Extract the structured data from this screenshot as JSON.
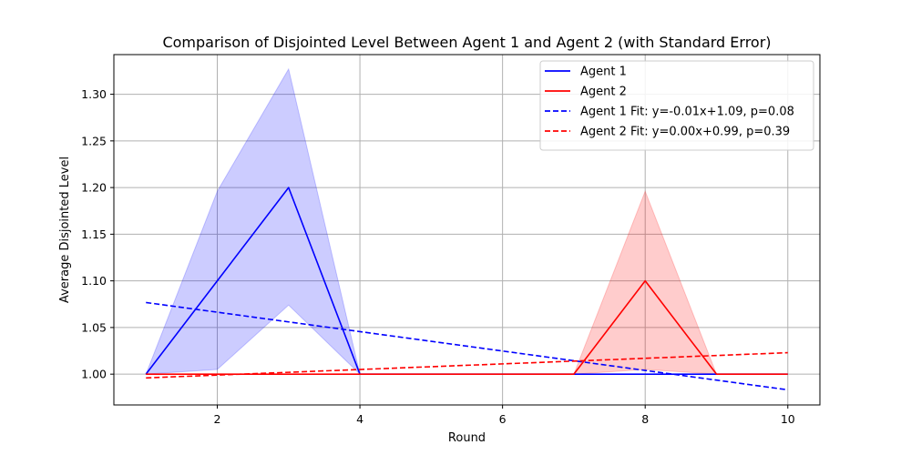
{
  "chart_data": {
    "type": "line",
    "title": "Comparison of Disjointed Level Between Agent 1 and Agent 2 (with Standard Error)",
    "xlabel": "Round",
    "ylabel": "Average Disjointed Level",
    "xlim": [
      0.55,
      10.45
    ],
    "ylim": [
      0.967,
      1.3425
    ],
    "xticks": [
      2,
      4,
      6,
      8,
      10
    ],
    "yticks": [
      1.0,
      1.05,
      1.1,
      1.15,
      1.2,
      1.25,
      1.3
    ],
    "grid": true,
    "legend_position": "top-right",
    "x": [
      1,
      2,
      3,
      4,
      5,
      6,
      7,
      8,
      9,
      10
    ],
    "series": [
      {
        "name": "Agent 1",
        "style": "solid",
        "color": "#0000ff",
        "values": [
          1.0,
          1.1,
          1.2,
          1.0,
          1.0,
          1.0,
          1.0,
          1.0,
          1.0,
          1.0
        ],
        "band_lower": [
          1.0,
          1.005,
          1.074,
          1.0,
          1.0,
          1.0,
          1.0,
          1.0,
          1.0,
          1.0
        ],
        "band_upper": [
          1.0,
          1.196,
          1.327,
          1.0,
          1.0,
          1.0,
          1.0,
          1.0,
          1.0,
          1.0
        ],
        "band_color": "#0000ff",
        "band_opacity": 0.2
      },
      {
        "name": "Agent 2",
        "style": "solid",
        "color": "#ff0000",
        "values": [
          1.0,
          1.0,
          1.0,
          1.0,
          1.0,
          1.0,
          1.0,
          1.1,
          1.0,
          1.0
        ],
        "band_lower": [
          1.0,
          1.0,
          1.0,
          1.0,
          1.0,
          1.0,
          1.0,
          1.005,
          1.0,
          1.0
        ],
        "band_upper": [
          1.0,
          1.0,
          1.0,
          1.0,
          1.0,
          1.0,
          1.0,
          1.196,
          1.0,
          1.0
        ],
        "band_color": "#ff0000",
        "band_opacity": 0.2
      },
      {
        "name": "Agent 1 Fit: y=-0.01x+1.09, p=0.08",
        "style": "dashed",
        "color": "#0000ff",
        "fit": {
          "slope": -0.0104,
          "intercept": 1.0872
        }
      },
      {
        "name": "Agent 2 Fit: y=0.00x+0.99, p=0.39",
        "style": "dashed",
        "color": "#ff0000",
        "fit": {
          "slope": 0.003,
          "intercept": 0.993
        }
      }
    ]
  }
}
